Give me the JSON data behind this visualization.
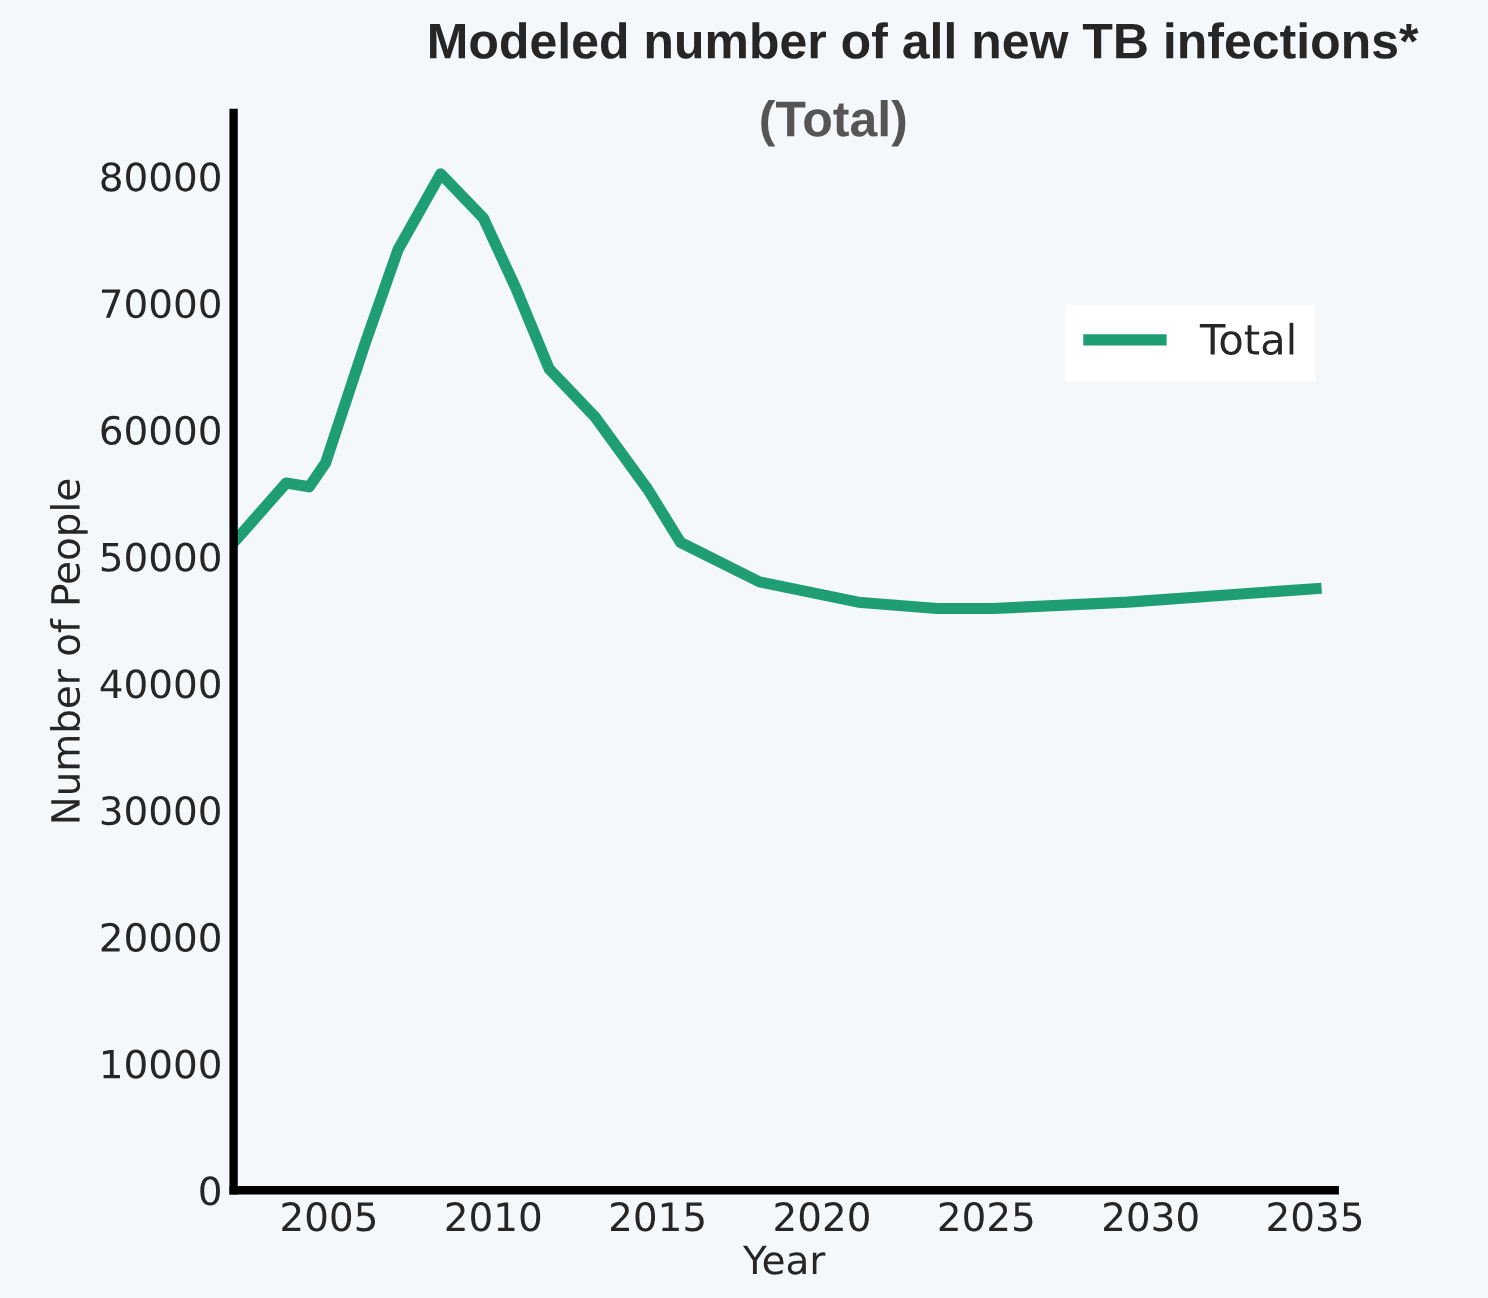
{
  "chart_data": {
    "type": "line",
    "title": "Modeled number of all new TB infections*",
    "subtitle": "(Total)",
    "xlabel": "Year",
    "ylabel": "Number of People",
    "x": [
      2002.1,
      2003.7,
      2004.4,
      2004.9,
      2006.1,
      2007.1,
      2008.4,
      2009.7,
      2010.7,
      2011.7,
      2013.1,
      2014.7,
      2015.7,
      2018.1,
      2021.1,
      2023.5,
      2025.2,
      2029.3,
      2035.2
    ],
    "series": [
      {
        "name": "Total",
        "color": "#1f9e74",
        "values": [
          51100,
          55800,
          55500,
          57400,
          66800,
          74200,
          80200,
          76700,
          71100,
          64800,
          61000,
          55300,
          51100,
          48000,
          46400,
          45900,
          45900,
          46400,
          47500
        ]
      }
    ],
    "xlim": [
      2002.1,
      2035.6
    ],
    "xticks": [
      2005,
      2010,
      2015,
      2020,
      2025,
      2030,
      2035
    ],
    "ylim": [
      0,
      85000
    ],
    "yticks": [
      0,
      10000,
      20000,
      30000,
      40000,
      50000,
      60000,
      70000,
      80000
    ],
    "grid": false,
    "legend": "top right",
    "line_style": "solid"
  }
}
